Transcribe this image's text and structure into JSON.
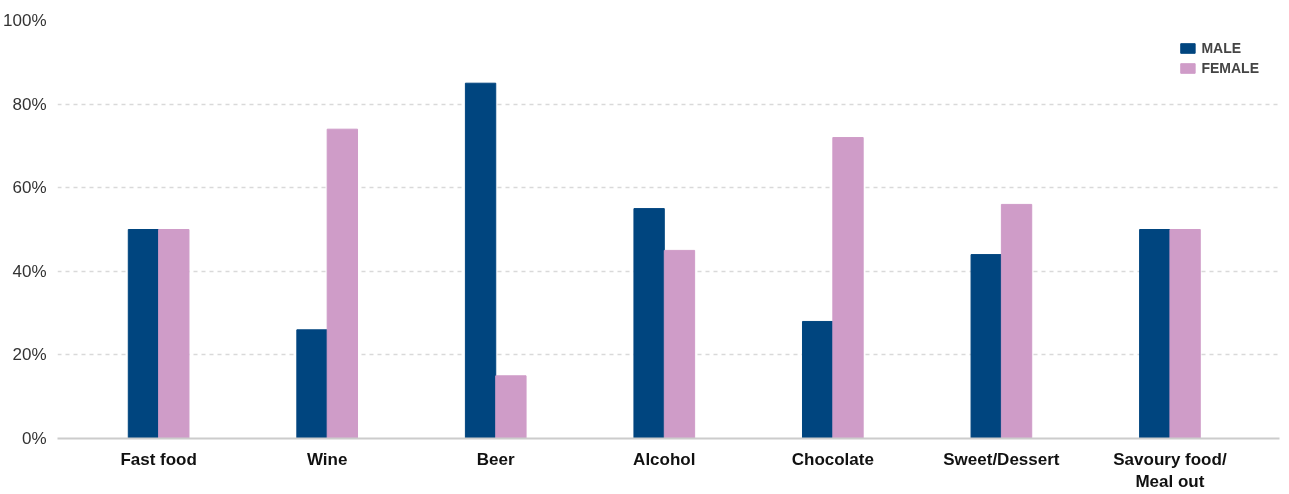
{
  "chart_data": {
    "type": "bar",
    "categories": [
      "Fast food",
      "Wine",
      "Beer",
      "Alcohol",
      "Chocolate",
      "Sweet/Dessert",
      "Savoury food/\nMeal out"
    ],
    "series": [
      {
        "name": "MALE",
        "color": "#00457f",
        "values": [
          50,
          26,
          85,
          55,
          28,
          44,
          50
        ]
      },
      {
        "name": "FEMALE",
        "color": "#cf9cc8",
        "values": [
          50,
          74,
          15,
          45,
          72,
          56,
          50
        ]
      }
    ],
    "ylim": [
      0,
      100
    ],
    "yticks": [
      {
        "value": 0,
        "label": "0%"
      },
      {
        "value": 20,
        "label": "20%"
      },
      {
        "value": 40,
        "label": "40%"
      },
      {
        "value": 60,
        "label": "60%"
      },
      {
        "value": 80,
        "label": "80%"
      },
      {
        "value": 100,
        "label": "100%"
      }
    ],
    "grid": "y",
    "legend": "top right"
  }
}
